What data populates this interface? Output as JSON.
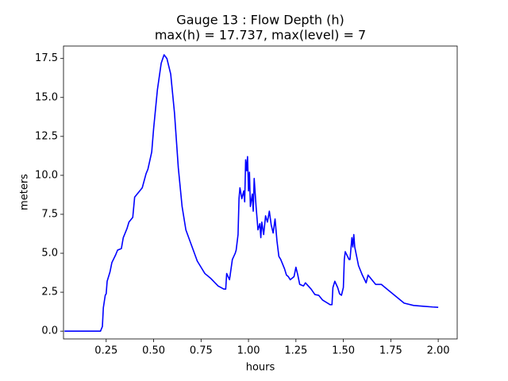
{
  "chart_data": {
    "type": "line",
    "title": "Gauge 13 : Flow Depth (h)",
    "subtitle": "max(h) =  17.737,    max(level) = 7",
    "xlabel": "hours",
    "ylabel": "meters",
    "color": "blue",
    "x": [
      0.03,
      0.22,
      0.23,
      0.235,
      0.245,
      0.25,
      0.255,
      0.27,
      0.28,
      0.3,
      0.31,
      0.33,
      0.34,
      0.36,
      0.37,
      0.39,
      0.4,
      0.42,
      0.44,
      0.46,
      0.47,
      0.49,
      0.5,
      0.52,
      0.54,
      0.555,
      0.57,
      0.59,
      0.61,
      0.63,
      0.65,
      0.67,
      0.7,
      0.73,
      0.77,
      0.8,
      0.84,
      0.87,
      0.88,
      0.885,
      0.9,
      0.915,
      0.93,
      0.935,
      0.945,
      0.95,
      0.955,
      0.965,
      0.975,
      0.98,
      0.985,
      0.99,
      0.995,
      1.0,
      1.005,
      1.01,
      1.02,
      1.025,
      1.03,
      1.04,
      1.05,
      1.06,
      1.065,
      1.07,
      1.08,
      1.09,
      1.1,
      1.11,
      1.12,
      1.13,
      1.14,
      1.15,
      1.16,
      1.17,
      1.19,
      1.2,
      1.21,
      1.22,
      1.23,
      1.24,
      1.25,
      1.26,
      1.27,
      1.29,
      1.3,
      1.33,
      1.35,
      1.37,
      1.39,
      1.43,
      1.44,
      1.445,
      1.455,
      1.47,
      1.48,
      1.49,
      1.5,
      1.505,
      1.51,
      1.53,
      1.535,
      1.545,
      1.55,
      1.555,
      1.56,
      1.58,
      1.6,
      1.62,
      1.63,
      1.65,
      1.67,
      1.7,
      1.72,
      1.75,
      1.78,
      1.82,
      1.87,
      1.92,
      1.97,
      2.0
    ],
    "values": [
      0,
      0,
      0.3,
      1.5,
      2.3,
      2.4,
      3.2,
      3.8,
      4.4,
      4.9,
      5.2,
      5.3,
      6.0,
      6.6,
      7.0,
      7.3,
      8.6,
      8.9,
      9.2,
      10.1,
      10.4,
      11.5,
      13.0,
      15.5,
      17.2,
      17.737,
      17.5,
      16.5,
      14.0,
      10.5,
      8.0,
      6.5,
      5.5,
      4.5,
      3.7,
      3.4,
      2.9,
      2.7,
      2.7,
      3.7,
      3.3,
      4.6,
      5.0,
      5.2,
      6.2,
      8.5,
      9.2,
      8.5,
      9.0,
      8.3,
      11.0,
      10.3,
      11.2,
      9.0,
      10.2,
      8.0,
      8.8,
      7.7,
      9.8,
      8.0,
      6.5,
      6.9,
      6.0,
      7.0,
      6.2,
      7.4,
      7.0,
      7.7,
      6.8,
      6.3,
      7.2,
      5.8,
      4.8,
      4.6,
      4.0,
      3.6,
      3.5,
      3.3,
      3.4,
      3.5,
      4.1,
      3.6,
      3.0,
      2.9,
      3.1,
      2.7,
      2.35,
      2.3,
      2.0,
      1.7,
      1.7,
      2.8,
      3.2,
      2.8,
      2.4,
      2.3,
      2.8,
      4.6,
      5.1,
      4.6,
      4.6,
      6.0,
      5.4,
      6.2,
      5.4,
      4.2,
      3.6,
      3.1,
      3.6,
      3.3,
      3.0,
      3.0,
      2.8,
      2.5,
      2.2,
      1.8,
      1.65,
      1.6,
      1.55,
      1.53
    ],
    "xlim": [
      0.025,
      2.1
    ],
    "ylim": [
      -0.5,
      18.3
    ],
    "xticks": [
      0.25,
      {
        "value": 0.5,
        "label": "0.50"
      },
      0.75,
      {
        "value": 1,
        "label": "1.00"
      },
      1.25,
      {
        "value": 1.5,
        "label": "1.50"
      },
      1.75,
      {
        "value": 2,
        "label": "2.00"
      }
    ],
    "yticks": [
      {
        "value": 0,
        "label": "0.0"
      },
      2.5,
      {
        "value": 5,
        "label": "5.0"
      },
      7.5,
      {
        "value": 10,
        "label": "10.0"
      },
      12.5,
      {
        "value": 15,
        "label": "15.0"
      },
      17.5
    ]
  }
}
